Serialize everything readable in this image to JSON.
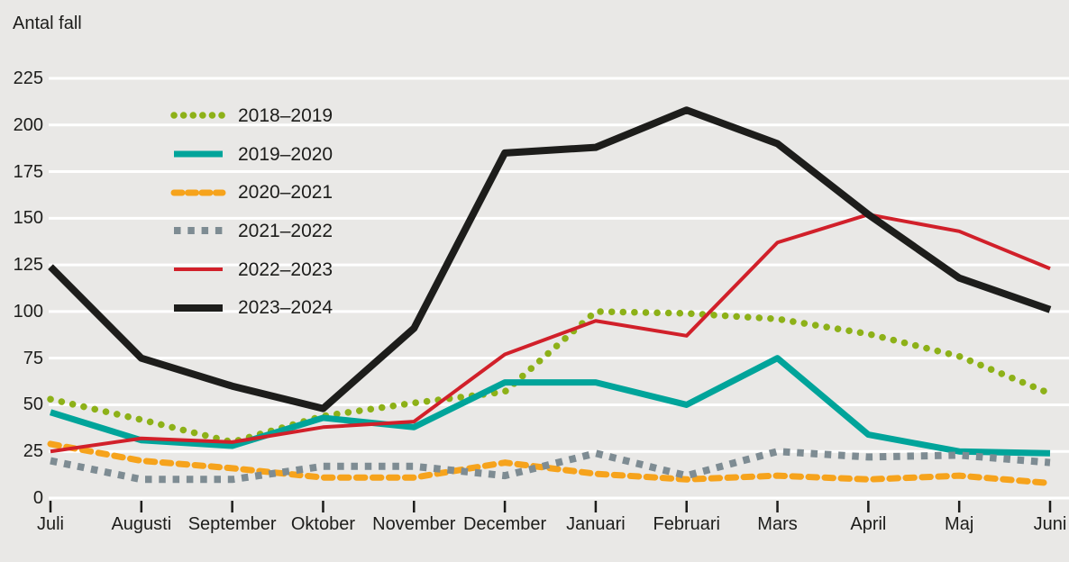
{
  "title": "Antal fall",
  "colors": {
    "background": "#e9e8e6",
    "gridline": "#ffffff",
    "text": "#1d1d1b",
    "tick": "#1d1d1b",
    "series_2018_2019": "#8db118",
    "series_2019_2020": "#00a49a",
    "series_2020_2021": "#f6a31c",
    "series_2021_2022": "#7e8c93",
    "series_2022_2023": "#d1202a",
    "series_2023_2024": "#1d1d1b"
  },
  "chart_data": {
    "type": "line",
    "title": "Antal fall",
    "ylabel": "Antal fall",
    "xlabel": "",
    "grid": true,
    "legend_position": "upper-left-inside",
    "ylim": [
      0,
      225
    ],
    "ytick_step": 25,
    "yticks": [
      0,
      25,
      50,
      75,
      100,
      125,
      150,
      175,
      200,
      225
    ],
    "categories": [
      "Juli",
      "Augusti",
      "September",
      "Oktober",
      "November",
      "December",
      "Januari",
      "Februari",
      "Mars",
      "April",
      "Maj",
      "Juni"
    ],
    "series": [
      {
        "name": "2018–2019",
        "color": "#8db118",
        "style": "round-dot",
        "width": 7.5,
        "values": [
          53,
          42,
          30,
          44,
          51,
          57,
          100,
          99,
          96,
          88,
          76,
          56
        ]
      },
      {
        "name": "2019–2020",
        "color": "#00a49a",
        "style": "solid",
        "width": 7,
        "values": [
          46,
          31,
          28,
          43,
          38,
          62,
          62,
          50,
          75,
          34,
          25,
          24
        ]
      },
      {
        "name": "2020–2021",
        "color": "#f6a31c",
        "style": "round-dash",
        "width": 7,
        "values": [
          29,
          20,
          16,
          11,
          11,
          19,
          13,
          10,
          12,
          10,
          12,
          8
        ]
      },
      {
        "name": "2021–2022",
        "color": "#7e8c93",
        "style": "square-dot",
        "width": 8,
        "values": [
          20,
          10,
          10,
          17,
          17,
          12,
          24,
          12,
          25,
          22,
          23,
          19
        ]
      },
      {
        "name": "2022–2023",
        "color": "#d1202a",
        "style": "solid",
        "width": 4,
        "values": [
          25,
          32,
          30,
          38,
          41,
          77,
          95,
          87,
          137,
          152,
          143,
          123
        ]
      },
      {
        "name": "2023–2024",
        "color": "#1d1d1b",
        "style": "solid",
        "width": 8,
        "values": [
          124,
          75,
          60,
          48,
          91,
          185,
          188,
          208,
          190,
          152,
          118,
          101
        ]
      }
    ]
  }
}
